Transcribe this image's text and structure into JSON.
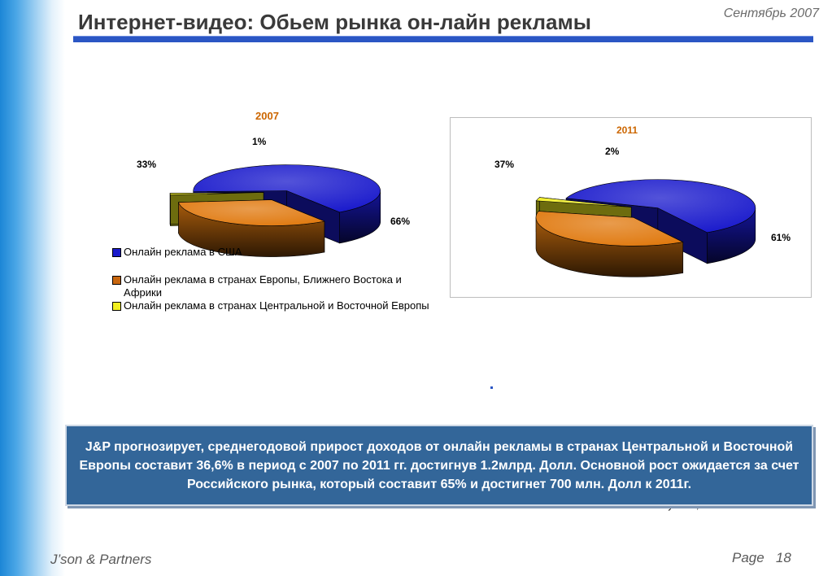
{
  "header": {
    "title": "Интернет-видео: Обьем рынка он-лайн рекламы",
    "date": "Сентябрь 2007"
  },
  "colors": {
    "usa": "#1a1acc",
    "europe": "#e07a10",
    "cee": "#f2ef20",
    "accent": "#2b56c4",
    "forecast_box": "#336699"
  },
  "chart_data": [
    {
      "type": "pie",
      "title": "2007",
      "series": [
        {
          "name": "Онлайн реклама в США",
          "value": 66,
          "label": "66%"
        },
        {
          "name": "Онлайн реклама в странах Европы, Ближнего Востока и Африки",
          "value": 33,
          "label": "33%"
        },
        {
          "name": "Онлайн реклама в странах Центральной и Восточной Европы",
          "value": 1,
          "label": "1%"
        }
      ],
      "legend_position": "bottom"
    },
    {
      "type": "pie",
      "title": "2011",
      "series": [
        {
          "name": "Онлайн реклама в США",
          "value": 61,
          "label": "61%"
        },
        {
          "name": "Онлайн реклама в странах Европы, Ближнего Востока и Африки",
          "value": 37,
          "label": "37%"
        },
        {
          "name": "Онлайн реклама в странах Центральной и Восточной Европы",
          "value": 2,
          "label": "2%"
        }
      ]
    }
  ],
  "legend": {
    "usa": "Онлайн реклама в США",
    "europe": "Онлайн реклама в странах Европы, Ближнего Востока и Африки",
    "cee": "Онлайн реклама в странах Центральной и Восточной Европы"
  },
  "forecast": "J&P прогнозирует, среднегодовой прирост доходов от онлайн рекламы в странах Центральной и Восточной Европы составит 36,6% в период с 2007 по 2011 гг. достигнув 1.2млрд. Долл. Основной рост ожидается за счет Российского рынка, который составит 65% и достигнет 700 млн. Долл к 2011г.",
  "source": "Source: Industry Data, J'son & Partners",
  "footer": {
    "company": "J’son & Partners",
    "page_label": "Page",
    "page_number": "18"
  }
}
